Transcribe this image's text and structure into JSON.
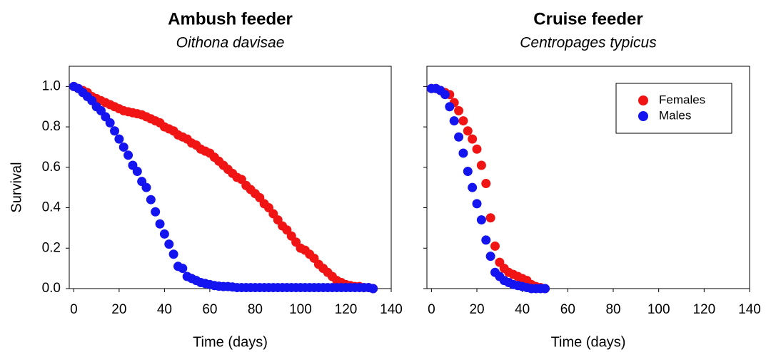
{
  "chart_data": [
    {
      "type": "scatter",
      "title": "Ambush feeder",
      "subtitle": "Oithona davisae",
      "x_label": "Time (days)",
      "y_label": "Survival",
      "x": [
        0,
        2,
        4,
        6,
        8,
        10,
        12,
        14,
        16,
        18,
        20,
        22,
        24,
        26,
        28,
        30,
        32,
        34,
        36,
        38,
        40,
        42,
        44,
        46,
        48,
        50,
        52,
        54,
        56,
        58,
        60,
        62,
        64,
        66,
        68,
        70,
        72,
        74,
        76,
        78,
        80,
        82,
        84,
        86,
        88,
        90,
        92,
        94,
        96,
        98,
        100,
        102,
        104,
        106,
        108,
        110,
        112,
        114,
        116,
        118,
        120,
        122,
        124,
        126,
        128,
        130,
        132
      ],
      "series": [
        {
          "name": "Females",
          "color": "#f01414",
          "values": [
            1.0,
            0.99,
            0.98,
            0.97,
            0.95,
            0.94,
            0.93,
            0.92,
            0.91,
            0.9,
            0.89,
            0.88,
            0.875,
            0.87,
            0.865,
            0.86,
            0.85,
            0.84,
            0.83,
            0.82,
            0.8,
            0.79,
            0.78,
            0.76,
            0.75,
            0.74,
            0.72,
            0.71,
            0.69,
            0.68,
            0.67,
            0.65,
            0.63,
            0.61,
            0.59,
            0.57,
            0.55,
            0.54,
            0.51,
            0.49,
            0.47,
            0.45,
            0.42,
            0.4,
            0.37,
            0.34,
            0.31,
            0.29,
            0.26,
            0.23,
            0.2,
            0.19,
            0.17,
            0.15,
            0.12,
            0.1,
            0.08,
            0.06,
            0.04,
            0.03,
            0.02,
            0.015,
            0.01,
            0.01,
            0.005,
            0.005,
            0.0
          ]
        },
        {
          "name": "Males",
          "color": "#1414f0",
          "values": [
            1.0,
            0.99,
            0.97,
            0.95,
            0.93,
            0.9,
            0.88,
            0.85,
            0.82,
            0.78,
            0.74,
            0.7,
            0.66,
            0.61,
            0.58,
            0.53,
            0.5,
            0.44,
            0.38,
            0.32,
            0.27,
            0.22,
            0.17,
            0.11,
            0.1,
            0.06,
            0.05,
            0.04,
            0.03,
            0.025,
            0.02,
            0.015,
            0.012,
            0.01,
            0.01,
            0.008,
            0.005,
            0.005,
            0.005,
            0.005,
            0.005,
            0.005,
            0.005,
            0.005,
            0.005,
            0.005,
            0.005,
            0.005,
            0.005,
            0.005,
            0.005,
            0.005,
            0.005,
            0.005,
            0.005,
            0.005,
            0.005,
            0.005,
            0.005,
            0.005,
            0.005,
            0.005,
            0.005,
            0.005,
            0.005,
            0.005,
            0.0
          ]
        }
      ],
      "xlim": [
        -2,
        140
      ],
      "xticks": [
        0,
        20,
        40,
        60,
        80,
        100,
        120,
        140
      ],
      "ylim": [
        0,
        1.1
      ],
      "yticks": [
        {
          "value": 0,
          "label": "0.0"
        },
        {
          "value": 0.2,
          "label": "0.2"
        },
        {
          "value": 0.4,
          "label": "0.4"
        },
        {
          "value": 0.6,
          "label": "0.6"
        },
        {
          "value": 0.8,
          "label": "0.8"
        },
        {
          "value": 1,
          "label": "1.0"
        }
      ],
      "ytick_labels": true,
      "legend": false
    },
    {
      "type": "scatter",
      "title": "Cruise feeder",
      "subtitle": "Centropages typicus",
      "x_label": "Time (days)",
      "x": [
        0,
        2,
        4,
        6,
        8,
        10,
        12,
        14,
        16,
        18,
        20,
        22,
        24,
        26,
        28,
        30,
        32,
        34,
        36,
        38,
        40,
        42,
        44,
        46,
        48,
        50
      ],
      "series": [
        {
          "name": "Females",
          "color": "#f01414",
          "values": [
            0.99,
            0.99,
            0.98,
            0.97,
            0.96,
            0.92,
            0.88,
            0.83,
            0.78,
            0.74,
            0.69,
            0.61,
            0.52,
            0.35,
            0.21,
            0.13,
            0.1,
            0.08,
            0.07,
            0.06,
            0.05,
            0.04,
            0.02,
            0.01,
            0.005,
            0.0
          ]
        },
        {
          "name": "Males",
          "color": "#1414f0",
          "values": [
            0.99,
            0.99,
            0.98,
            0.96,
            0.9,
            0.83,
            0.75,
            0.67,
            0.58,
            0.5,
            0.42,
            0.34,
            0.24,
            0.16,
            0.08,
            0.06,
            0.04,
            0.03,
            0.02,
            0.015,
            0.01,
            0.005,
            0.0,
            0.0,
            0.0,
            0.0
          ]
        }
      ],
      "xlim": [
        -2,
        140
      ],
      "xticks": [
        0,
        20,
        40,
        60,
        80,
        100,
        120,
        140
      ],
      "ylim": [
        0,
        1.1
      ],
      "yticks": [
        {
          "value": 0,
          "label": "0.0"
        },
        {
          "value": 0.2,
          "label": "0.2"
        },
        {
          "value": 0.4,
          "label": "0.4"
        },
        {
          "value": 0.6,
          "label": "0.6"
        },
        {
          "value": 0.8,
          "label": "0.8"
        },
        {
          "value": 1,
          "label": "1.0"
        }
      ],
      "ytick_labels": false,
      "legend": "upper right"
    }
  ]
}
